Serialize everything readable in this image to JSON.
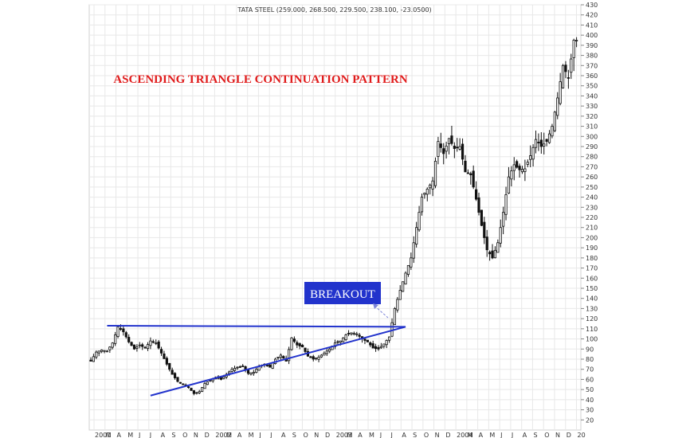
{
  "header": {
    "ohlc_label": "TATA STEEL (259.000, 268.500, 229.500, 238.100, -23.0500)"
  },
  "annotations": {
    "title": "ASCENDING TRIANGLE CONTINUATION PATTERN",
    "breakout_label": "BREAKOUT"
  },
  "colors": {
    "title": "#e01b1b",
    "trendline": "#2233cc",
    "callout_bg": "#2233cc",
    "candle": "#111111",
    "grid": "#e8e8e8"
  },
  "chart_data": {
    "type": "candlestick",
    "title": "ASCENDING TRIANGLE CONTINUATION PATTERN",
    "xlabel": "",
    "ylabel": "",
    "ylim": [
      10,
      430
    ],
    "y_ticks": [
      20,
      30,
      40,
      50,
      60,
      70,
      80,
      90,
      100,
      110,
      120,
      130,
      140,
      150,
      160,
      170,
      180,
      190,
      200,
      210,
      220,
      230,
      240,
      250,
      260,
      270,
      280,
      290,
      300,
      310,
      320,
      330,
      340,
      350,
      360,
      370,
      380,
      390,
      400,
      410,
      420,
      430
    ],
    "x_ticks": [
      "2001",
      "M",
      "A",
      "M",
      "J",
      "J",
      "A",
      "S",
      "O",
      "N",
      "D",
      "2002",
      "M",
      "A",
      "M",
      "J",
      "J",
      "A",
      "S",
      "O",
      "N",
      "D",
      "2003",
      "M",
      "A",
      "M",
      "J",
      "J",
      "A",
      "S",
      "O",
      "N",
      "D",
      "2004",
      "M",
      "A",
      "M",
      "J",
      "J",
      "A",
      "S",
      "O",
      "N",
      "D",
      "20"
    ],
    "grid": true,
    "axis_side": "right",
    "close_path": [
      [
        0,
        78
      ],
      [
        2,
        87
      ],
      [
        4,
        89
      ],
      [
        6,
        88
      ],
      [
        8,
        96
      ],
      [
        10,
        112
      ],
      [
        12,
        107
      ],
      [
        14,
        97
      ],
      [
        16,
        90
      ],
      [
        18,
        94
      ],
      [
        20,
        91
      ],
      [
        22,
        98
      ],
      [
        24,
        96
      ],
      [
        26,
        86
      ],
      [
        28,
        75
      ],
      [
        30,
        65
      ],
      [
        32,
        58
      ],
      [
        34,
        55
      ],
      [
        36,
        52
      ],
      [
        38,
        46
      ],
      [
        40,
        48
      ],
      [
        42,
        56
      ],
      [
        44,
        59
      ],
      [
        46,
        62
      ],
      [
        48,
        60
      ],
      [
        50,
        65
      ],
      [
        52,
        70
      ],
      [
        54,
        72
      ],
      [
        56,
        73
      ],
      [
        58,
        66
      ],
      [
        60,
        67
      ],
      [
        62,
        73
      ],
      [
        64,
        75
      ],
      [
        66,
        72
      ],
      [
        68,
        80
      ],
      [
        70,
        84
      ],
      [
        72,
        78
      ],
      [
        74,
        101
      ],
      [
        76,
        94
      ],
      [
        78,
        92
      ],
      [
        80,
        83
      ],
      [
        82,
        80
      ],
      [
        84,
        82
      ],
      [
        86,
        86
      ],
      [
        88,
        90
      ],
      [
        90,
        96
      ],
      [
        92,
        98
      ],
      [
        94,
        104
      ],
      [
        96,
        106
      ],
      [
        98,
        105
      ],
      [
        100,
        100
      ],
      [
        102,
        97
      ],
      [
        104,
        91
      ],
      [
        106,
        90
      ],
      [
        108,
        95
      ],
      [
        110,
        102
      ],
      [
        112,
        130
      ],
      [
        114,
        148
      ],
      [
        116,
        165
      ],
      [
        118,
        180
      ],
      [
        120,
        210
      ],
      [
        122,
        240
      ],
      [
        124,
        248
      ],
      [
        126,
        256
      ],
      [
        128,
        295
      ],
      [
        130,
        283
      ],
      [
        132,
        298
      ],
      [
        134,
        288
      ],
      [
        136,
        290
      ],
      [
        138,
        265
      ],
      [
        140,
        262
      ],
      [
        142,
        238
      ],
      [
        144,
        212
      ],
      [
        146,
        188
      ],
      [
        148,
        180
      ],
      [
        150,
        195
      ],
      [
        152,
        225
      ],
      [
        154,
        260
      ],
      [
        156,
        272
      ],
      [
        158,
        267
      ],
      [
        160,
        268
      ],
      [
        162,
        281
      ],
      [
        164,
        297
      ],
      [
        166,
        290
      ],
      [
        168,
        295
      ],
      [
        170,
        310
      ],
      [
        172,
        338
      ],
      [
        174,
        370
      ],
      [
        176,
        358
      ],
      [
        178,
        395
      ]
    ],
    "trendlines": [
      {
        "type": "resistance",
        "from": [
          6,
          113
        ],
        "to": [
          116,
          112
        ]
      },
      {
        "type": "support",
        "from": [
          22,
          44
        ],
        "to": [
          116,
          112
        ]
      }
    ],
    "annotations": [
      {
        "text": "ASCENDING TRIANGLE CONTINUATION PATTERN"
      },
      {
        "text": "BREAKOUT",
        "points_to": [
          93,
          112
        ]
      }
    ]
  }
}
